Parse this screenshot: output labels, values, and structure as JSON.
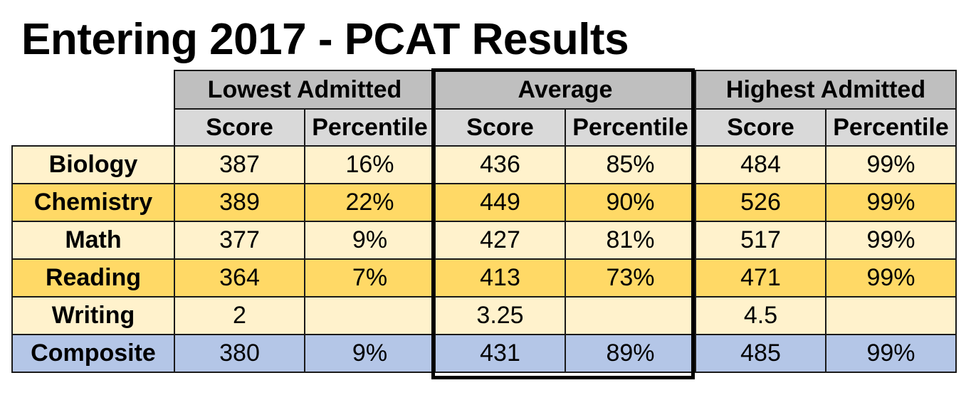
{
  "title": "Entering 2017 - PCAT Results",
  "groups": {
    "lowest": "Lowest Admitted",
    "average": "Average",
    "highest": "Highest Admitted"
  },
  "subheaders": {
    "score": "Score",
    "percentile": "Percentile"
  },
  "rows": [
    {
      "subject": "Biology",
      "low_score": "387",
      "low_pct": "16%",
      "avg_score": "436",
      "avg_pct": "85%",
      "high_score": "484",
      "high_pct": "99%"
    },
    {
      "subject": "Chemistry",
      "low_score": "389",
      "low_pct": "22%",
      "avg_score": "449",
      "avg_pct": "90%",
      "high_score": "526",
      "high_pct": "99%"
    },
    {
      "subject": "Math",
      "low_score": "377",
      "low_pct": "9%",
      "avg_score": "427",
      "avg_pct": "81%",
      "high_score": "517",
      "high_pct": "99%"
    },
    {
      "subject": "Reading",
      "low_score": "364",
      "low_pct": "7%",
      "avg_score": "413",
      "avg_pct": "73%",
      "high_score": "471",
      "high_pct": "99%"
    },
    {
      "subject": "Writing",
      "low_score": "2",
      "low_pct": "",
      "avg_score": "3.25",
      "avg_pct": "",
      "high_score": "4.5",
      "high_pct": ""
    },
    {
      "subject": "Composite",
      "low_score": "380",
      "low_pct": "9%",
      "avg_score": "431",
      "avg_pct": "89%",
      "high_score": "485",
      "high_pct": "99%"
    }
  ],
  "colors": {
    "group_header": "#bfbfbf",
    "sub_header": "#d9d9d9",
    "row_light": "#fff2cc",
    "row_dark": "#ffd966",
    "row_composite": "#b4c6e7"
  }
}
